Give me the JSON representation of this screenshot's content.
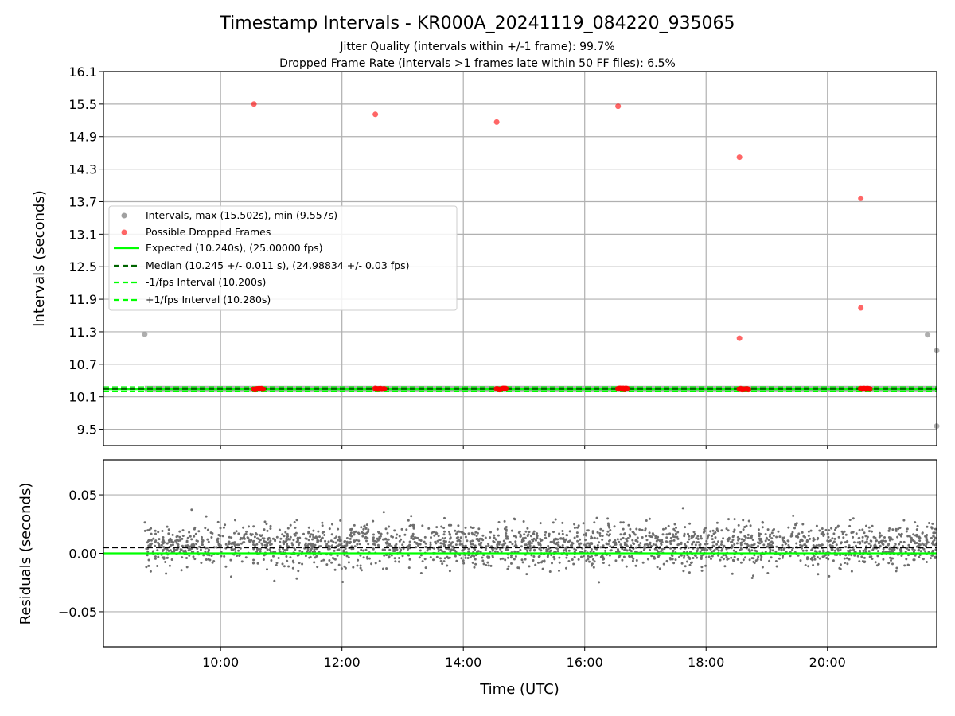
{
  "chart_data": {
    "type": "scatter",
    "title": "Timestamp Intervals - KR000A_20241119_084220_935065",
    "subtitle_lines": [
      "Jitter Quality (intervals within +/-1 frame): 99.7%",
      "Dropped Frame Rate (intervals >1 frames late within 50 FF files): 6.5%"
    ],
    "xlabel": "Time (UTC)",
    "x_axis": {
      "unit": "hours (UTC)",
      "range": [
        8.07,
        21.8
      ],
      "ticks": [
        10,
        12,
        14,
        16,
        18,
        20
      ],
      "tick_labels": [
        "10:00",
        "12:00",
        "14:00",
        "16:00",
        "18:00",
        "20:00"
      ]
    },
    "top": {
      "ylabel": "Intervals (seconds)",
      "ylim": [
        9.2,
        16.1
      ],
      "yticks": [
        9.5,
        10.1,
        10.7,
        11.3,
        11.9,
        12.5,
        13.1,
        13.7,
        14.3,
        14.9,
        15.5,
        16.1
      ],
      "ytick_labels": [
        "9.5",
        "10.1",
        "10.7",
        "11.3",
        "11.9",
        "12.5",
        "13.1",
        "13.7",
        "14.3",
        "14.9",
        "15.5",
        "16.1"
      ],
      "grid": true,
      "legend_position": "center-left",
      "series": [
        {
          "name": "Intervals, max (15.502s), min (9.557s)",
          "color": "#a0a0a0",
          "band": {
            "x_start": 8.75,
            "x_end": 21.8,
            "center": 10.245,
            "half_width": 0.015
          },
          "outliers": [
            {
              "x": 8.75,
              "y": 11.255
            },
            {
              "x": 21.65,
              "y": 11.245
            },
            {
              "x": 21.8,
              "y": 10.95
            },
            {
              "x": 21.8,
              "y": 9.557
            }
          ]
        },
        {
          "name": "Possible Dropped Frames",
          "color": "#ff0000",
          "points": [
            {
              "x": 10.55,
              "y": 15.502
            },
            {
              "x": 12.55,
              "y": 15.31
            },
            {
              "x": 14.55,
              "y": 15.17
            },
            {
              "x": 16.55,
              "y": 15.46
            },
            {
              "x": 18.55,
              "y": 14.52
            },
            {
              "x": 18.55,
              "y": 11.18
            },
            {
              "x": 20.55,
              "y": 13.76
            },
            {
              "x": 20.55,
              "y": 11.74
            }
          ],
          "clusters": [
            {
              "x_start": 10.55,
              "x_end": 10.7,
              "y": 10.245
            },
            {
              "x_start": 12.55,
              "x_end": 12.7,
              "y": 10.245
            },
            {
              "x_start": 14.55,
              "x_end": 14.7,
              "y": 10.245
            },
            {
              "x_start": 16.55,
              "x_end": 16.7,
              "y": 10.245
            },
            {
              "x_start": 18.55,
              "x_end": 18.7,
              "y": 10.245
            },
            {
              "x_start": 20.55,
              "x_end": 20.7,
              "y": 10.245
            }
          ]
        },
        {
          "name": "Expected (10.240s), (25.00000 fps)",
          "color": "#00ff00",
          "style": "solid",
          "y": 10.24
        },
        {
          "name": "Median (10.245 +/- 0.011 s), (24.98834 +/- 0.03 fps)",
          "color": "#006400",
          "style": "dashed",
          "y": 10.245
        },
        {
          "name": "-1/fps Interval (10.200s)",
          "color": "#00ff00",
          "style": "dashed",
          "y": 10.2
        },
        {
          "name": "+1/fps Interval (10.280s)",
          "color": "#00ff00",
          "style": "dashed",
          "y": 10.28
        }
      ]
    },
    "bottom": {
      "ylabel": "Residuals (seconds)",
      "ylim": [
        -0.08,
        0.08
      ],
      "yticks": [
        -0.05,
        0.0,
        0.05
      ],
      "ytick_labels": [
        "−0.05",
        "0.00",
        "0.05"
      ],
      "grid": true,
      "expected_line": {
        "y": 0.0,
        "color": "#00ff00",
        "style": "solid"
      },
      "median_line": {
        "y": 0.005,
        "color": "#000000",
        "style": "dashed"
      },
      "residual_points": {
        "color": "#6e6e6e",
        "x_start": 8.75,
        "x_end": 21.8,
        "center": 0.007,
        "spread_sd": 0.009,
        "min": -0.026,
        "max": 0.044
      }
    }
  }
}
